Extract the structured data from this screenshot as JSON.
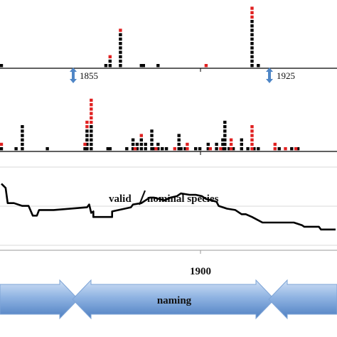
{
  "chart_data": [
    {
      "type": "bar",
      "panel": "top",
      "unit": "species described per year (dot stack)",
      "xlim": [
        1805,
        1965
      ],
      "markers": [
        {
          "label": "1855",
          "x": 1856
        },
        {
          "label": "1925",
          "x": 1926
        }
      ],
      "series": [
        {
          "name": "",
          "color": "#000000",
          "points": [
            [
              1805,
              1
            ],
            [
              1855,
              1
            ],
            [
              1857,
              2
            ],
            [
              1862,
              8
            ],
            [
              1872,
              1
            ],
            [
              1873,
              1
            ],
            [
              1880,
              1
            ],
            [
              1925,
              11
            ],
            [
              1928,
              1
            ]
          ]
        },
        {
          "name": "",
          "color": "#e02020",
          "points": [
            [
              1857,
              1
            ],
            [
              1862,
              1
            ],
            [
              1903,
              1
            ],
            [
              1925,
              3
            ]
          ]
        }
      ]
    },
    {
      "type": "bar",
      "panel": "middle",
      "unit": "species described per year (dot stack)",
      "xlim": [
        1805,
        1965
      ],
      "series": [
        {
          "name": "",
          "color": "#000000",
          "points": [
            [
              1805,
              1
            ],
            [
              1812,
              1
            ],
            [
              1815,
              6
            ],
            [
              1827,
              1
            ],
            [
              1845,
              1
            ],
            [
              1846,
              5
            ],
            [
              1848,
              6
            ],
            [
              1856,
              1
            ],
            [
              1857,
              1
            ],
            [
              1865,
              1
            ],
            [
              1868,
              3
            ],
            [
              1870,
              2
            ],
            [
              1872,
              3
            ],
            [
              1874,
              2
            ],
            [
              1877,
              5
            ],
            [
              1878,
              1
            ],
            [
              1880,
              2
            ],
            [
              1882,
              1
            ],
            [
              1884,
              1
            ],
            [
              1890,
              4
            ],
            [
              1891,
              1
            ],
            [
              1893,
              1
            ],
            [
              1898,
              1
            ],
            [
              1900,
              1
            ],
            [
              1904,
              2
            ],
            [
              1908,
              2
            ],
            [
              1911,
              3
            ],
            [
              1912,
              7
            ],
            [
              1914,
              1
            ],
            [
              1916,
              1
            ],
            [
              1920,
              3
            ],
            [
              1923,
              1
            ],
            [
              1926,
              1
            ],
            [
              1928,
              1
            ],
            [
              1938,
              1
            ],
            [
              1944,
              1
            ],
            [
              1947,
              1
            ]
          ]
        },
        {
          "name": "",
          "color": "#e02020",
          "points": [
            [
              1805,
              1
            ],
            [
              1845,
              1
            ],
            [
              1846,
              2
            ],
            [
              1848,
              6
            ],
            [
              1869,
              1
            ],
            [
              1872,
              1
            ],
            [
              1879,
              1
            ],
            [
              1888,
              1
            ],
            [
              1894,
              1
            ],
            [
              1894,
              1
            ],
            [
              1905,
              1
            ],
            [
              1910,
              1
            ],
            [
              1915,
              3
            ],
            [
              1925,
              6
            ],
            [
              1936,
              2
            ],
            [
              1941,
              1
            ],
            [
              1946,
              1
            ]
          ]
        }
      ]
    },
    {
      "type": "line",
      "panel": "bottom",
      "title": "valid / nominal species",
      "xlim": [
        1805,
        1965
      ],
      "ylim": [
        0.4,
        1.0
      ],
      "x_ticks": [
        1900
      ],
      "x": [
        1805,
        1807,
        1808,
        1811,
        1815,
        1818,
        1820,
        1822,
        1823,
        1830,
        1846,
        1847,
        1848,
        1849,
        1849,
        1858,
        1858,
        1867,
        1868,
        1872,
        1876,
        1878,
        1883,
        1886,
        1889,
        1891,
        1895,
        1898,
        1901,
        1903,
        1908,
        1909,
        1913,
        1917,
        1920,
        1922,
        1925,
        1930,
        1945,
        1949,
        1950,
        1957,
        1958,
        1965
      ],
      "y": [
        0.88,
        0.85,
        0.74,
        0.74,
        0.72,
        0.72,
        0.65,
        0.65,
        0.69,
        0.69,
        0.71,
        0.73,
        0.67,
        0.68,
        0.64,
        0.64,
        0.68,
        0.71,
        0.73,
        0.74,
        0.78,
        0.78,
        0.76,
        0.78,
        0.79,
        0.81,
        0.8,
        0.8,
        0.79,
        0.77,
        0.75,
        0.72,
        0.7,
        0.69,
        0.66,
        0.66,
        0.64,
        0.6,
        0.6,
        0.58,
        0.57,
        0.57,
        0.55,
        0.55
      ]
    }
  ],
  "labels": {
    "marker_1855": "1855",
    "marker_1925": "1925",
    "series_title_valid": "valid",
    "series_title_sep": "/",
    "series_title_nominal": "nominal species",
    "tick_1900": "1900",
    "phase_naming": "naming"
  },
  "colors": {
    "red_dot": "#e02020",
    "black_dot": "#000000",
    "arrow_fill_top": "#9cbde6",
    "arrow_fill_bottom": "#5b8fd0",
    "arrow_stroke": "#6f97c9",
    "marker_arrow": "#4f86c6"
  }
}
